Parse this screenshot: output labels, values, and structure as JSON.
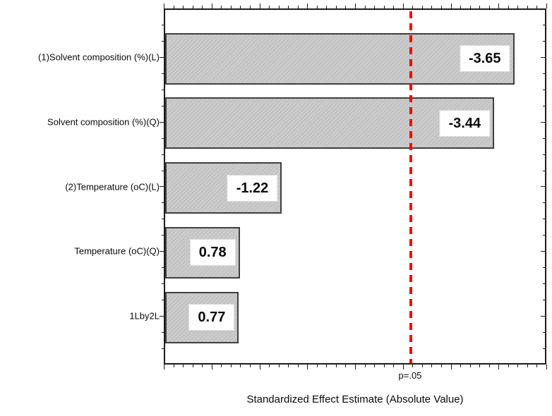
{
  "chart_data": {
    "type": "bar",
    "orientation": "horizontal",
    "title": "",
    "xlabel": "Standardized Effect Estimate (Absolute Value)",
    "ylabel": "",
    "categories": [
      "(1)Solvent composition (%)(L)",
      "Solvent composition (%)(Q)",
      "(2)Temperature (oC)(L)",
      "Temperature (oC)(Q)",
      "1Lby2L"
    ],
    "values": [
      -3.65,
      -3.44,
      -1.22,
      0.78,
      0.77
    ],
    "value_labels": [
      "-3.65",
      "-3.44",
      "-1.22",
      "0.78",
      "0.77"
    ],
    "bar_lengths_abs": [
      3.65,
      3.44,
      1.22,
      0.78,
      0.77
    ],
    "xlim": [
      0,
      4.0
    ],
    "x_minor_step": 0.1,
    "x_major_step": 0.5,
    "grid": false,
    "legend": "none",
    "significance_line": {
      "x": 2.57,
      "label": "p=.05",
      "color": "#ff0000",
      "style": "dashed"
    },
    "colors": {
      "bar_fill": "#cbcbcb",
      "bar_hatch_line": "#bdbdbd",
      "bar_border": "#3f3f3f",
      "frame": "#1b1b1b",
      "text": "#0a0a0a",
      "background": "#ffffff"
    }
  }
}
